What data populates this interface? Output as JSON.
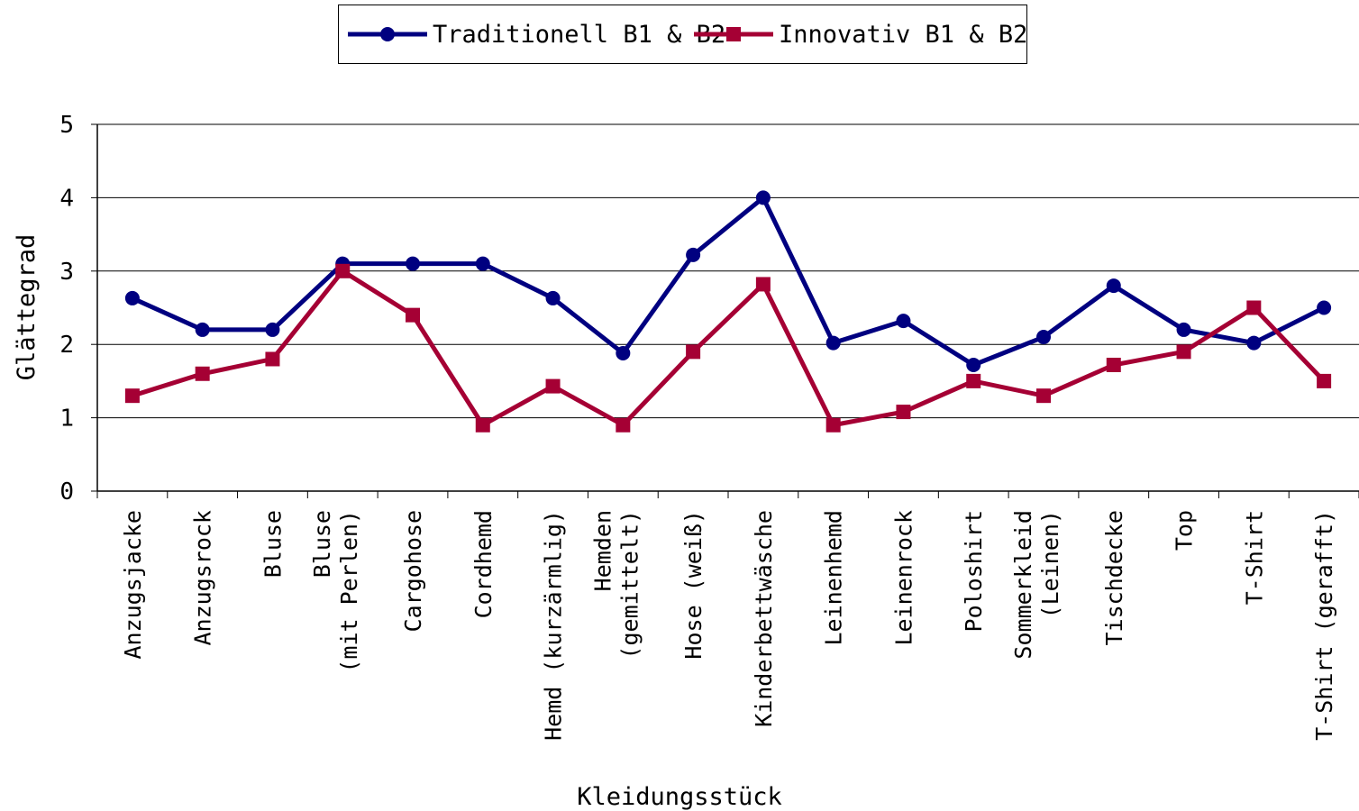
{
  "chart_data": {
    "type": "line",
    "title": "",
    "xlabel": "Kleidungsstück",
    "ylabel": "Glättegrad",
    "ylim": [
      0,
      5
    ],
    "yticks": [
      0,
      1,
      2,
      3,
      4,
      5
    ],
    "grid": "horizontal",
    "legend_position": "top",
    "categories": [
      "Anzugsjacke",
      "Anzugsrock",
      "Bluse",
      "Bluse (mit Perlen)",
      "Cargohose",
      "Cordhemd",
      "Hemd (kurzärmlig)",
      "Hemden (gemittelt)",
      "Hose (weiß)",
      "Kinderbettwäsche",
      "Leinenhemd",
      "Leinenrock",
      "Poloshirt",
      "Sommerkleid (Leinen)",
      "Tischdecke",
      "Top",
      "T-Shirt",
      "T-Shirt (gerafft)"
    ],
    "series": [
      {
        "name": "Traditionell B1 & B2",
        "color": "#000080",
        "marker": "circle",
        "values": [
          2.63,
          2.2,
          2.2,
          3.1,
          3.1,
          3.1,
          2.63,
          1.88,
          3.22,
          4.0,
          2.02,
          2.32,
          1.72,
          2.1,
          2.8,
          2.2,
          2.02,
          2.5
        ]
      },
      {
        "name": "Innovativ B1 & B2",
        "color": "#A50034",
        "marker": "square",
        "values": [
          1.3,
          1.6,
          1.8,
          3.0,
          2.4,
          0.9,
          1.43,
          0.9,
          1.9,
          2.82,
          0.9,
          1.08,
          1.5,
          1.3,
          1.72,
          1.9,
          2.5,
          1.5
        ]
      }
    ]
  }
}
